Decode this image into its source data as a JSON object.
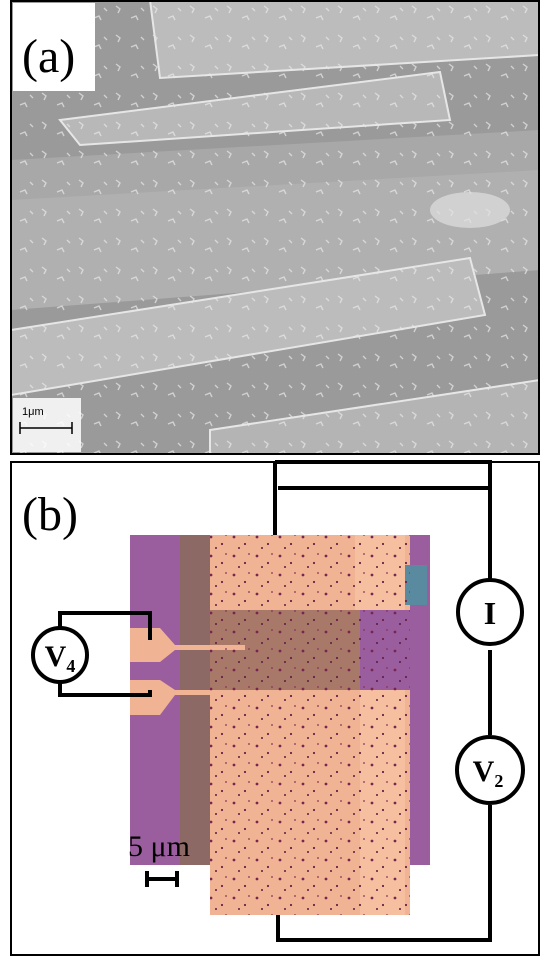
{
  "panel_a": {
    "label": "(a)",
    "scale_bar": "1μm"
  },
  "panel_b": {
    "label": "(b)",
    "scale_bar": "5 μm",
    "voltmeter_4": {
      "symbol": "V",
      "subscript": "4"
    },
    "current_source": "I",
    "voltmeter_2": {
      "symbol": "V",
      "subscript": "2"
    }
  }
}
